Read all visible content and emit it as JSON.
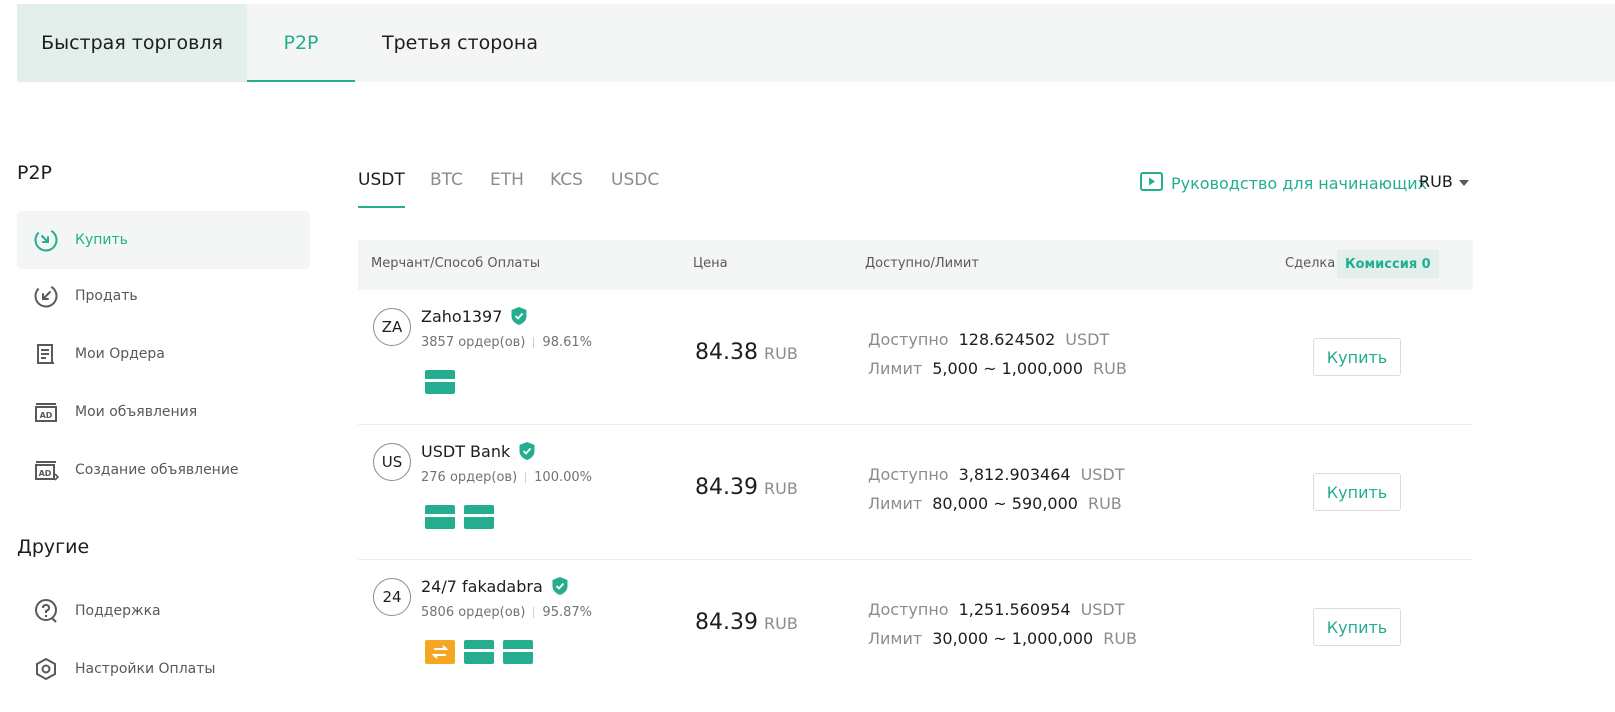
{
  "top_tabs": {
    "quick": "Быстрая торговля",
    "p2p": "P2P",
    "third": "Третья сторона"
  },
  "sidebar": {
    "p2p_heading": "P2P",
    "items": [
      {
        "label": "Купить",
        "icon": "buy-icon"
      },
      {
        "label": "Продать",
        "icon": "sell-icon"
      },
      {
        "label": "Мои Ордера",
        "icon": "orders-icon"
      },
      {
        "label": "Мои объявления",
        "icon": "ad-icon"
      },
      {
        "label": "Создание объявление",
        "icon": "create-ad-icon"
      }
    ],
    "other_heading": "Другие",
    "other_items": [
      {
        "label": "Поддержка",
        "icon": "support-icon"
      },
      {
        "label": "Настройки Оплаты",
        "icon": "payment-settings-icon"
      }
    ]
  },
  "coins": [
    "USDT",
    "BTC",
    "ETH",
    "KCS",
    "USDC"
  ],
  "guide": {
    "label": "Руководство для начинающих",
    "icon": "play-icon"
  },
  "currency": "RUB",
  "table": {
    "headers": {
      "merchant": "Мерчант/Способ Оплаты",
      "price": "Цена",
      "available": "Доступно/Лимит",
      "deal": "Сделка",
      "commission": "Комиссия 0"
    },
    "labels": {
      "available": "Доступно",
      "limit": "Лимит",
      "buy": "Купить"
    },
    "rows": [
      {
        "initials": "ZA",
        "name": "Zaho1397",
        "orders": "3857 ордер(ов)",
        "rate": "98.61%",
        "price": "84.38",
        "price_unit": "RUB",
        "available": "128.624502",
        "available_unit": "USDT",
        "limit": "5,000 ~ 1,000,000",
        "limit_unit": "RUB",
        "payments": [
          "card"
        ]
      },
      {
        "initials": "US",
        "name": "USDT Bank",
        "orders": "276 ордер(ов)",
        "rate": "100.00%",
        "price": "84.39",
        "price_unit": "RUB",
        "available": "3,812.903464",
        "available_unit": "USDT",
        "limit": "80,000 ~ 590,000",
        "limit_unit": "RUB",
        "payments": [
          "card",
          "card"
        ]
      },
      {
        "initials": "24",
        "name": "24/7 fakadabra",
        "orders": "5806 ордер(ов)",
        "rate": "95.87%",
        "price": "84.39",
        "price_unit": "RUB",
        "available": "1,251.560954",
        "available_unit": "USDT",
        "limit": "30,000 ~ 1,000,000",
        "limit_unit": "RUB",
        "payments": [
          "transfer",
          "card",
          "card"
        ]
      }
    ]
  },
  "colors": {
    "accent": "#24ae8f",
    "orange": "#f5a623"
  }
}
